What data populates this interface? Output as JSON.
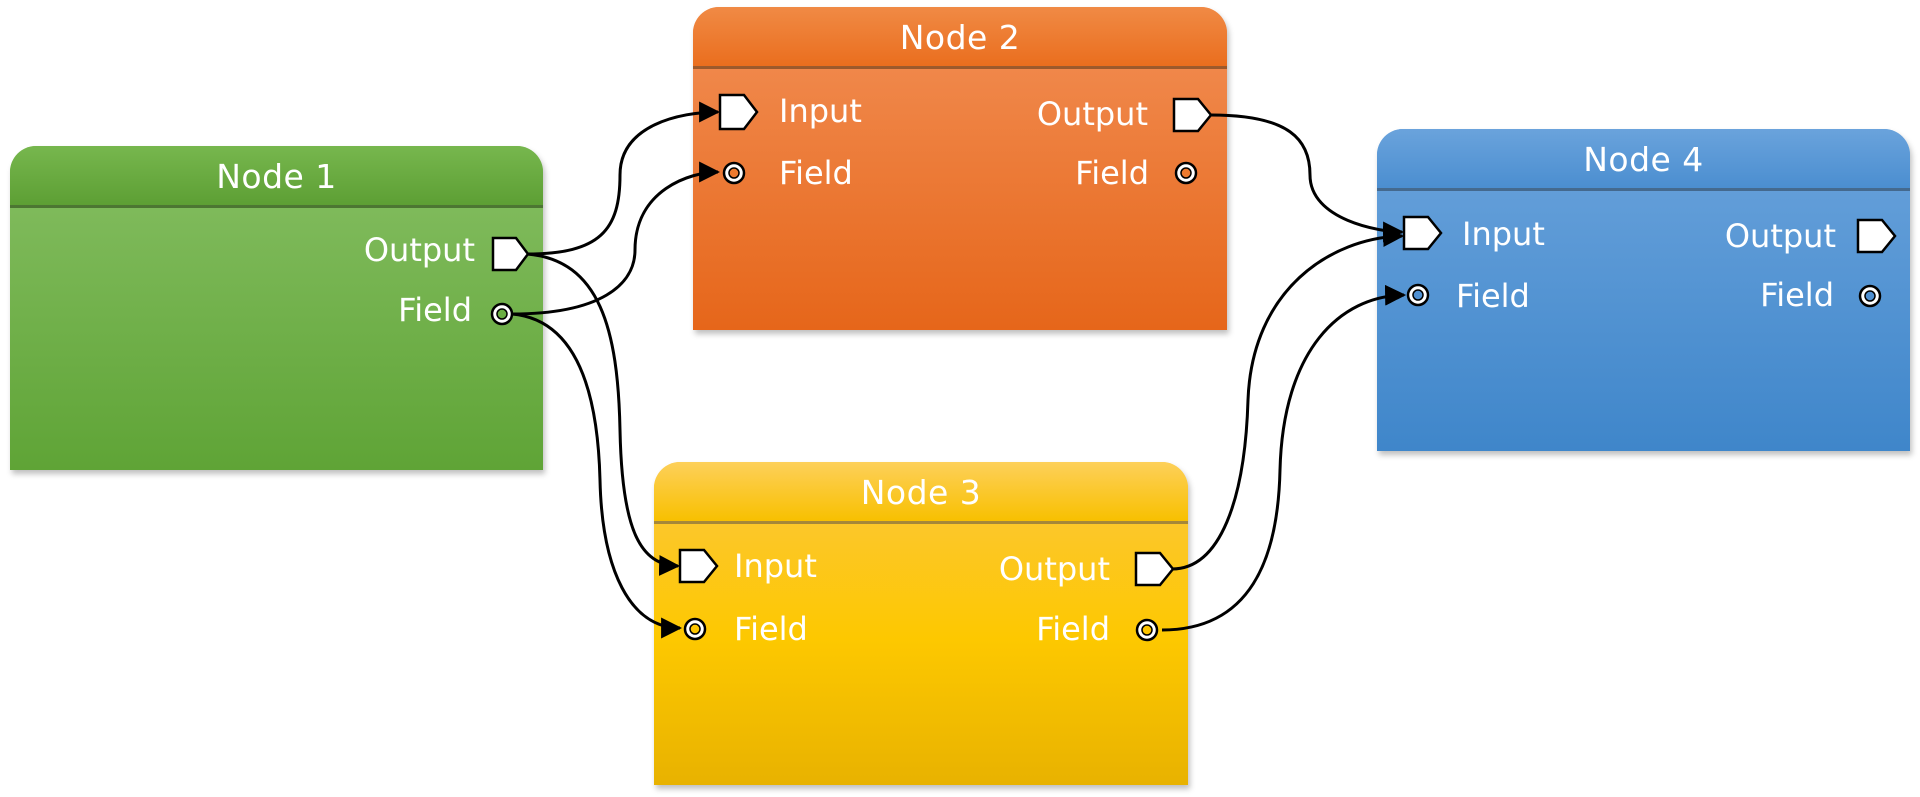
{
  "nodes": {
    "node1": {
      "title": "Node 1",
      "output_label": "Output",
      "field_label": "Field",
      "color": "#6aae42"
    },
    "node2": {
      "title": "Node 2",
      "input_label": "Input",
      "field_in_label": "Field",
      "output_label": "Output",
      "field_out_label": "Field",
      "color": "#ee7a2e"
    },
    "node3": {
      "title": "Node 3",
      "input_label": "Input",
      "field_in_label": "Field",
      "output_label": "Output",
      "field_out_label": "Field",
      "color": "#fdc500"
    },
    "node4": {
      "title": "Node 4",
      "input_label": "Input",
      "field_in_label": "Field",
      "output_label": "Output",
      "field_out_label": "Field",
      "color": "#4f90d2"
    }
  },
  "connections": [
    {
      "from": "Node 1 Output",
      "to": "Node 2 Input"
    },
    {
      "from": "Node 1 Field",
      "to": "Node 2 Field"
    },
    {
      "from": "Node 1 Output",
      "to": "Node 3 Input"
    },
    {
      "from": "Node 1 Field",
      "to": "Node 3 Field"
    },
    {
      "from": "Node 2 Output",
      "to": "Node 4 Input"
    },
    {
      "from": "Node 3 Output",
      "to": "Node 4 Input"
    },
    {
      "from": "Node 3 Field",
      "to": "Node 4 Field"
    }
  ]
}
